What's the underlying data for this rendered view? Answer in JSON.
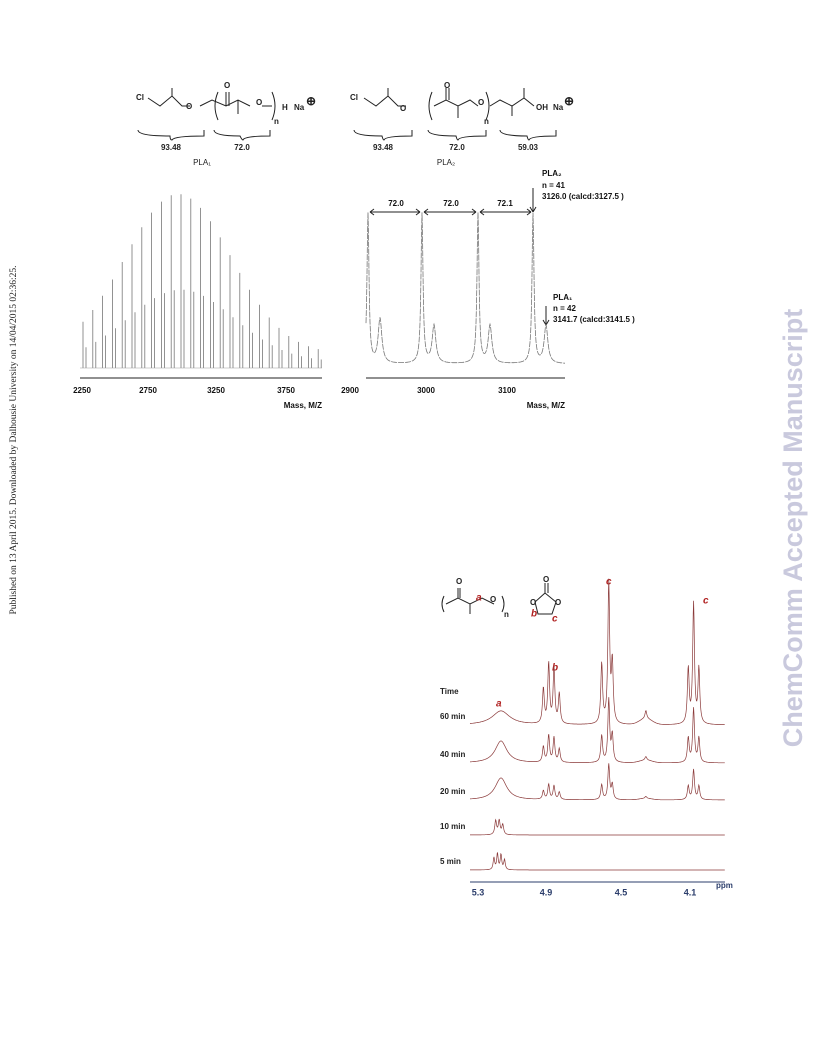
{
  "sidebar": {
    "published": "Published on 13 April 2015. Downloaded by Dalhousie University on 14/04/2015 02:36:25.",
    "watermark": "ChemComm Accepted Manuscript"
  },
  "ms_figure": {
    "pla1_structure": {
      "cl": "Cl",
      "o1": "O",
      "o2": "O",
      "n": "n",
      "h": "H",
      "na": "Na",
      "charge": "⊕",
      "seg1": "93.48",
      "seg2": "72.0",
      "name": "PLA₁"
    },
    "pla2_structure": {
      "cl": "Cl",
      "o1": "O",
      "o2": "O",
      "n": "n",
      "oh": "OH",
      "na": "Na",
      "charge": "⊕",
      "seg1": "93.48",
      "seg2": "72.0",
      "seg3": "59.03",
      "name": "PLA₂"
    },
    "left_plot": {
      "ticks": [
        "2250",
        "2750",
        "3250",
        "3750"
      ],
      "x_label": "Mass, M/Z"
    },
    "right_plot": {
      "ticks": [
        "2900",
        "3000",
        "3100"
      ],
      "x_label": "Mass, M/Z",
      "spacings": [
        "72.0",
        "72.0",
        "72.1"
      ],
      "pla2_note": [
        "PLA₂",
        "n = 41",
        "3126.0 (calcd:3127.5 )"
      ],
      "pla1_note": [
        "PLA₁",
        "n = 42",
        "3141.7 (calcd:3141.5 )"
      ]
    }
  },
  "nmr_figure": {
    "polymer": {
      "o": "O",
      "a": "a",
      "n": "n"
    },
    "carbonate": {
      "o_top": "O",
      "o_left": "O",
      "o_right": "O",
      "b": "b",
      "c": "c"
    },
    "time_header": "Time",
    "rows": [
      "60 min",
      "40 min",
      "20 min",
      "10 min",
      "5 min"
    ],
    "peak_labels": [
      "a",
      "b",
      "c",
      "c"
    ],
    "ticks": [
      "5.3",
      "4.9",
      "4.5",
      "4.1"
    ],
    "unit": "ppm"
  }
}
